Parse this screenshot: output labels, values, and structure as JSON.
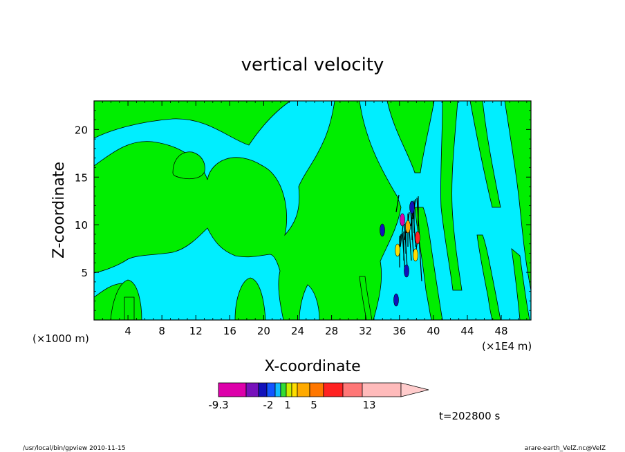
{
  "chart_data": {
    "type": "heatmap",
    "title": "vertical velocity",
    "xlabel": "X-coordinate",
    "ylabel": "Z-coordinate",
    "x_unit_left": "(×1000 m)",
    "x_unit_right": "(×1E4 m)",
    "xlim": [
      0,
      51.5
    ],
    "ylim": [
      0,
      23
    ],
    "x_ticks": [
      4,
      8,
      12,
      16,
      20,
      24,
      28,
      32,
      36,
      40,
      44,
      48
    ],
    "y_ticks": [
      5,
      10,
      15,
      20
    ],
    "colorbar": {
      "colors": [
        "#dd00aa",
        "#7711bb",
        "#1111bb",
        "#1155ff",
        "#11bbff",
        "#33dd33",
        "#ccee00",
        "#ffdd00",
        "#ffaa00",
        "#ff7700",
        "#ff2222",
        "#ff7777",
        "#ffbbbb",
        "#ffcccc"
      ],
      "labels": [
        "-9.3",
        "-2",
        "1",
        "5",
        "13"
      ]
    },
    "annotation": "t=202800 s"
  },
  "colors": {
    "cyan": "#00eeff",
    "green": "#00ee00"
  },
  "footer": {
    "left": "/usr/local/bin/gpview   2010-11-15",
    "right": "arare-earth_VelZ.nc@VelZ"
  }
}
